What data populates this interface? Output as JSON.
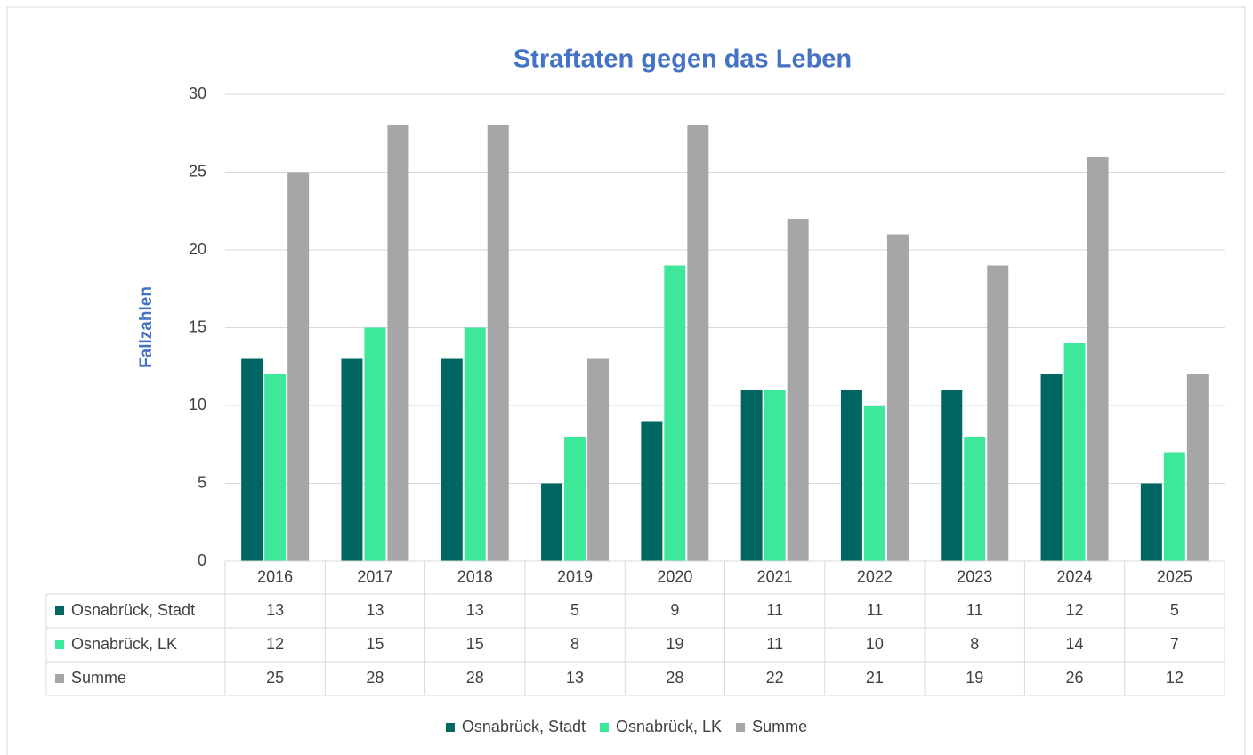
{
  "chart_data": {
    "type": "bar",
    "title": "Straftaten gegen das Leben",
    "y_label": "Fallzahlen",
    "categories": [
      "2016",
      "2017",
      "2018",
      "2019",
      "2020",
      "2021",
      "2022",
      "2023",
      "2024",
      "2025"
    ],
    "series": [
      {
        "name": "Osnabrück, Stadt",
        "color": "#006661",
        "values": [
          13,
          13,
          13,
          5,
          9,
          11,
          11,
          11,
          12,
          5
        ]
      },
      {
        "name": "Osnabrück, LK",
        "color": "#3de89a",
        "values": [
          12,
          15,
          15,
          8,
          19,
          11,
          10,
          8,
          14,
          7
        ]
      },
      {
        "name": "Summe",
        "color": "#a6a6a6",
        "values": [
          25,
          28,
          28,
          13,
          28,
          22,
          21,
          19,
          26,
          12
        ]
      }
    ],
    "ylim": [
      0,
      30
    ],
    "yticks": [
      0,
      5,
      10,
      15,
      20,
      25,
      30
    ],
    "grid": true,
    "legend": "bottom",
    "data_table": true
  }
}
